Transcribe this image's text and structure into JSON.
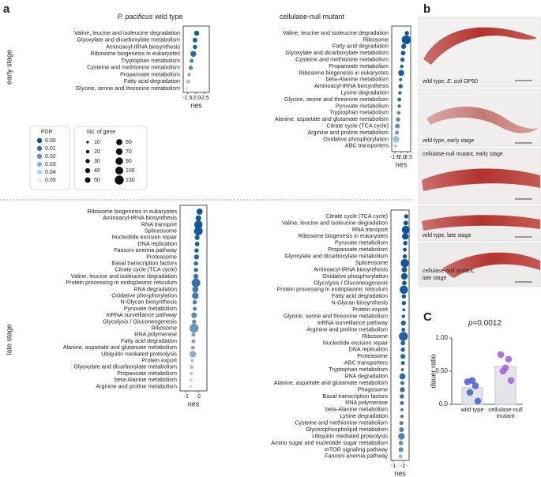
{
  "panel_labels": {
    "a": "a",
    "b": "b",
    "c": "C"
  },
  "row_labels": [
    "early stage",
    "late stage"
  ],
  "legend": {
    "fdr_title": "FDR",
    "fdr": [
      {
        "value": 0,
        "label": "0.00"
      },
      {
        "value": 0.01,
        "label": "0.01"
      },
      {
        "value": 0.02,
        "label": "0.02"
      },
      {
        "value": 0.03,
        "label": "0.03"
      },
      {
        "value": 0.04,
        "label": "0.04"
      },
      {
        "value": 0.05,
        "label": "0.05"
      }
    ],
    "fdr_colors": [
      "#08519c",
      "#e3eef8"
    ],
    "size_title": "No. of gene",
    "sizes": [
      10,
      20,
      30,
      40,
      50,
      60,
      70,
      90,
      100,
      130
    ]
  },
  "images": [
    {
      "caption": [
        "wild type, ",
        "E. coli",
        " OP50"
      ]
    },
    {
      "caption": [
        "wild type, early stage"
      ]
    },
    {
      "caption": [
        "cellulase-null mutant, early stage"
      ]
    },
    {
      "caption": [
        "wild type, late stage"
      ]
    },
    {
      "caption": [
        "cellulase-null mutant,",
        "late stage"
      ]
    }
  ],
  "chart_data": [
    {
      "type": "dot",
      "title_italic": "P. pacificus",
      "title": "wild type",
      "xlabel": "nes",
      "xlim": [
        -1.25,
        -2.8
      ],
      "xticks": [
        -1.5,
        {
          "value": -2,
          "label": "-2.0"
        },
        -2.5
      ],
      "categories": [
        "Valine, leucine and isoleucine degradation",
        "Glyoxylate and dicarboxylate metabolism",
        "Aminoacyl-tRNA biosynthesis",
        "Ribosome biogenesis in eukaryotes",
        "Tryptophan metabolism",
        "Cysteine and methionine metabolism",
        "Propanoate metabolism",
        "Fatty acid degradation",
        "Glycine, serine and threonine metabolism"
      ],
      "values": [
        -2.05,
        -1.95,
        -1.95,
        -1.85,
        -1.75,
        -1.7,
        -1.6,
        -1.55,
        -1.45
      ],
      "sizes": [
        40,
        35,
        30,
        55,
        25,
        30,
        20,
        25,
        20
      ],
      "fdr": [
        0.002,
        0.004,
        0.005,
        0.008,
        0.015,
        0.018,
        0.03,
        0.035,
        0.045
      ]
    },
    {
      "type": "dot",
      "title": "cellulase-null mutant",
      "xlabel": "nes",
      "xlim": [
        -1.25,
        -2.75
      ],
      "xticks": [
        -1.5,
        {
          "value": -2,
          "label": "-2.0"
        },
        -2.5
      ],
      "categories": [
        "Valine, leucine and isoleucine degradation",
        "Ribosome",
        "Fatty acid degradation",
        "Glyoxylate and dicarboxylate metabolism",
        "Cysteine and methionine metabolism",
        "Propanoate metabolism",
        "Ribosome biogenesis in eukaryotes",
        "beta-Alanine metabolism",
        "Aminoacyl-tRNA biosynthesis",
        "Lysine degradation",
        "Glycine, serine and threonine metabolism",
        "Pyruvate metabolism",
        "Tryptophan metabolism",
        "Alanine, aspartate and glutamate metabolism",
        "Citrate cycle (TCA cycle)",
        "Arginine and proline metabolism",
        "Oxidative phosphorylation",
        "ABC transporters"
      ],
      "values": [
        -2.45,
        -2.4,
        -2.2,
        -2.15,
        -2.1,
        -2.05,
        -2.0,
        -1.95,
        -1.95,
        -1.9,
        -1.85,
        -1.85,
        -1.8,
        -1.75,
        -1.7,
        -1.65,
        -1.6,
        -1.55
      ],
      "sizes": [
        30,
        130,
        40,
        35,
        30,
        20,
        60,
        15,
        30,
        20,
        25,
        20,
        20,
        30,
        35,
        30,
        70,
        20
      ],
      "fdr": [
        0.001,
        0.001,
        0.002,
        0.003,
        0.004,
        0.005,
        0.005,
        0.006,
        0.008,
        0.01,
        0.01,
        0.012,
        0.015,
        0.018,
        0.02,
        0.025,
        0.035,
        0.04
      ]
    },
    {
      "type": "dot",
      "xlabel": "nes",
      "xlim": [
        -0.5,
        -2.7
      ],
      "xticks": [
        -1,
        -2
      ],
      "categories": [
        "Ribosome biogenesis in eukaryotes",
        "Aminoacyl-tRNA biosynthesis",
        "RNA transport",
        "Spliceosome",
        "Nucleotide excision repair",
        "DNA replication",
        "Fanconi anemia pathway",
        "Proteasome",
        "Basal transcription factors",
        "Citrate cycle (TCA cycle)",
        "Valine, leucine and isoleucine degradation",
        "Protein processing in endoplasmic reticulum",
        "RNA degradation",
        "Oxidative phosphorylation",
        "N-Glycan biosynthesis",
        "Pyruvate metabolism",
        "mRNA surveillance pathway",
        "Glycolysis / Gluconeogenesis",
        "Ribosome",
        "RNA polymerase",
        "Fatty acid degradation",
        "Alanine, aspartate and glutamate metabolism",
        "Ubiquitin mediated proteolysis",
        "Protein export",
        "Glyoxylate and dicarboxylate metabolism",
        "Propanoate metabolism",
        "beta-Alanine metabolism",
        "Arginine and proline metabolism"
      ],
      "values": [
        -2.1,
        -2.0,
        -2.0,
        -2.0,
        -1.9,
        -1.9,
        -1.85,
        -1.85,
        -1.8,
        -1.8,
        -1.8,
        -1.8,
        -1.75,
        -1.75,
        -1.7,
        -1.7,
        -1.65,
        -1.65,
        -1.65,
        -1.6,
        -1.6,
        -1.55,
        -1.55,
        -1.5,
        -1.45,
        -1.4,
        -1.4,
        -1.35
      ],
      "sizes": [
        60,
        50,
        110,
        120,
        40,
        35,
        30,
        40,
        30,
        30,
        40,
        120,
        60,
        70,
        30,
        25,
        50,
        30,
        130,
        25,
        25,
        25,
        70,
        15,
        25,
        20,
        15,
        20
      ],
      "fdr": [
        0.001,
        0.002,
        0.002,
        0.003,
        0.004,
        0.005,
        0.006,
        0.007,
        0.008,
        0.009,
        0.01,
        0.01,
        0.012,
        0.013,
        0.015,
        0.016,
        0.018,
        0.02,
        0.022,
        0.024,
        0.026,
        0.028,
        0.03,
        0.033,
        0.036,
        0.039,
        0.042,
        0.045
      ]
    },
    {
      "type": "dot",
      "xlabel": "nes",
      "xlim": [
        -0.75,
        -2.65
      ],
      "xticks": [
        -1,
        -2
      ],
      "categories": [
        "Citrate cycle (TCA cycle)",
        "Valine, leucine and isoleucine degradation",
        "RNA transport",
        "Ribosome biogenesis in eukaryotes",
        "Pyruvate metabolism",
        "Propanoate metabolism",
        "Glyoxylate and dicarboxylate metabolism",
        "Spliceosome",
        "Aminoacyl-tRNA biosynthesis",
        "Oxidative phosphorylation",
        "Glycolysis / Gluconeogenesis",
        "Protein processing in endoplasmic reticulum",
        "Fatty acid degradation",
        "N-Glycan biosynthesis",
        "Protein export",
        "Glycine, serine and threonine metabolism",
        "mRNA surveillance pathway",
        "Arginine and proline metabolism",
        "Ribosome",
        "Nucleotide excision repair",
        "DNA replication",
        "Proteasome",
        "ABC transporters",
        "Tryptophan metabolism",
        "RNA degradation",
        "Alanine, aspartate and glutamate metabolism",
        "Phagosome",
        "Basal transcription factors",
        "RNA polymerase",
        "beta-Alanine metabolism",
        "Lysine degradation",
        "Cysteine and methionine metabolism",
        "Glycerophospholipid metabolism",
        "Ubiquitin mediated proteolysis",
        "Amino sugar and nucleotide sugar metabolism",
        "mTOR signaling pathway",
        "Fanconi anemia pathway"
      ],
      "values": [
        -2.35,
        -2.3,
        -2.3,
        -2.25,
        -2.25,
        -2.2,
        -2.2,
        -2.2,
        -2.15,
        -2.15,
        -2.15,
        -2.1,
        -2.1,
        -2.1,
        -2.1,
        -2.05,
        -2.05,
        -2.05,
        -2.05,
        -2.0,
        -2.0,
        -2.0,
        -2.0,
        -1.95,
        -1.95,
        -1.95,
        -1.95,
        -1.9,
        -1.9,
        -1.9,
        -1.9,
        -1.85,
        -1.85,
        -1.85,
        -1.8,
        -1.8,
        -1.75
      ],
      "sizes": [
        30,
        35,
        100,
        70,
        30,
        25,
        30,
        110,
        50,
        70,
        35,
        110,
        30,
        30,
        15,
        20,
        40,
        25,
        130,
        35,
        30,
        40,
        25,
        15,
        60,
        25,
        40,
        30,
        25,
        15,
        20,
        25,
        35,
        70,
        30,
        40,
        25
      ],
      "fdr": [
        0.001,
        0.001,
        0.001,
        0.001,
        0.001,
        0.002,
        0.002,
        0.002,
        0.002,
        0.002,
        0.003,
        0.003,
        0.003,
        0.004,
        0.004,
        0.004,
        0.005,
        0.005,
        0.005,
        0.006,
        0.006,
        0.007,
        0.007,
        0.008,
        0.008,
        0.009,
        0.01,
        0.01,
        0.011,
        0.012,
        0.013,
        0.014,
        0.015,
        0.016,
        0.018,
        0.022,
        0.03
      ]
    },
    {
      "type": "bar_dots",
      "annotation_italic": "p",
      "annotation": "=0.0012",
      "ylabel": "dauer ratio",
      "ylim": [
        0,
        1
      ],
      "yticks": [
        {
          "value": 0,
          "label": "0.0"
        },
        {
          "value": 0.5,
          "label": "0.50"
        },
        {
          "value": 1,
          "label": "1.00"
        }
      ],
      "categories": [
        "wild type",
        "cellulase-null mutant"
      ],
      "values": [
        0.25,
        0.57
      ],
      "points": [
        [
          0.34,
          0.28,
          0.18,
          0.05,
          0.36
        ],
        [
          0.75,
          0.68,
          0.5,
          0.36,
          0.55
        ]
      ],
      "colors": [
        "#4a66d8",
        "#a268d8"
      ]
    }
  ]
}
